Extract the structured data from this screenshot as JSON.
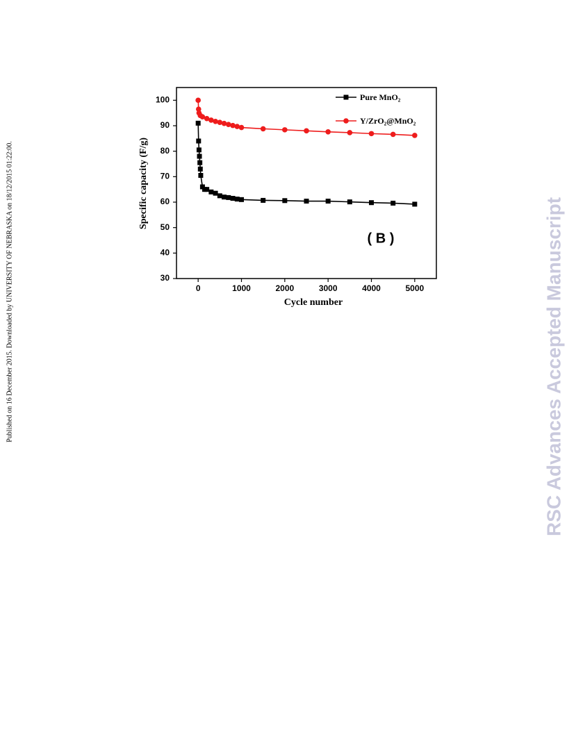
{
  "side_note": "Published on 16 December 2015. Downloaded by UNIVERSITY OF NEBRASKA on 18/12/2015 01:22:00.",
  "watermark": "RSC Advances Accepted Manuscript",
  "chart_data": {
    "type": "line",
    "xlabel": "Cycle number",
    "ylabel": "Specific capacity (F/g)",
    "annotation": "( B )",
    "xlim": [
      -500,
      5500
    ],
    "xticks": [
      0,
      1000,
      2000,
      3000,
      4000,
      5000
    ],
    "ylim": [
      30,
      105
    ],
    "yticks": [
      30,
      40,
      50,
      60,
      70,
      80,
      90,
      100
    ],
    "legend": "upper right",
    "series": [
      {
        "name": "Pure MnO₂",
        "color": "#000000",
        "marker": "square",
        "x": [
          0,
          10,
          20,
          30,
          40,
          50,
          60,
          100,
          150,
          200,
          300,
          400,
          500,
          600,
          700,
          800,
          900,
          1000,
          1500,
          2000,
          2500,
          3000,
          3500,
          4000,
          4500,
          5000
        ],
        "values": [
          91,
          84,
          80.5,
          78,
          75.5,
          73,
          70.5,
          66,
          65,
          65,
          64,
          63.5,
          62.5,
          62,
          61.8,
          61.5,
          61.2,
          61,
          60.7,
          60.6,
          60.4,
          60.4,
          60.1,
          59.8,
          59.6,
          59.2
        ]
      },
      {
        "name": "Y/ZrO₂@MnO₂",
        "color": "#ee1c1c",
        "marker": "circle",
        "x": [
          0,
          10,
          20,
          50,
          100,
          200,
          300,
          400,
          500,
          600,
          700,
          800,
          900,
          1000,
          1500,
          2000,
          2500,
          3000,
          3500,
          4000,
          4500,
          5000
        ],
        "values": [
          100,
          96.5,
          95,
          94,
          93.5,
          92.8,
          92.2,
          91.7,
          91.3,
          90.9,
          90.5,
          90.1,
          89.7,
          89.3,
          88.8,
          88.4,
          88,
          87.6,
          87.3,
          86.9,
          86.6,
          86.2
        ]
      }
    ]
  }
}
